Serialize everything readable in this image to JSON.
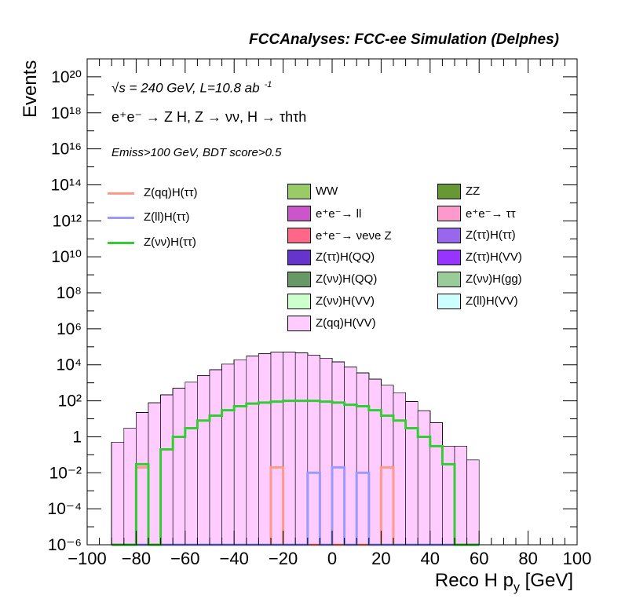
{
  "header": "FCCAnalyses: FCC-ee Simulation (Delphes)",
  "notes": {
    "line1": "√s = 240 GeV, L=10.8 ab",
    "line1_sup": "-1",
    "line2": "e⁺e⁻ → Z H, Z → νν, H → τhτh",
    "line3": "Emiss>100 GeV, BDT score>0.5"
  },
  "chart_data": {
    "type": "histogram",
    "xlabel": "Reco H p",
    "xlabel_sub": "y",
    "xlabel_unit": "[GeV]",
    "ylabel": "Events",
    "xlim": [
      -100,
      100
    ],
    "ylim": [
      1e-06,
      1e+21
    ],
    "log_y": true,
    "x_ticks": [
      "−100",
      "−80",
      "−60",
      "−40",
      "−20",
      "0",
      "20",
      "40",
      "60",
      "80",
      "100"
    ],
    "y_ticks": [
      "10⁻⁶",
      "10⁻⁴",
      "10⁻²",
      "1",
      "10²",
      "10⁴",
      "10⁶",
      "10⁸",
      "10¹⁰",
      "10¹²",
      "10¹⁴",
      "10¹⁶",
      "10¹⁸",
      "10²⁰"
    ],
    "bin_edges_start": -90,
    "bin_width": 5,
    "stack_layers": [
      {
        "name": "WW",
        "color": "#99cc66",
        "values": [
          0.5,
          3,
          20,
          60,
          150,
          300,
          500,
          800,
          1500,
          2500,
          3500,
          4500,
          5000,
          5200,
          5100,
          4500,
          3800,
          2800,
          2000,
          1300,
          800,
          450,
          250,
          120,
          50,
          20,
          5,
          0.3,
          0.3,
          0.05
        ]
      },
      {
        "name": "ZZ",
        "color": "#669933",
        "values": [
          0.001,
          0.05,
          1,
          6,
          20,
          40,
          80,
          150,
          250,
          350,
          500,
          700,
          800,
          850,
          800,
          700,
          550,
          400,
          300,
          250,
          200,
          120,
          80,
          40,
          10,
          3,
          0.5,
          0.001,
          0.001,
          0.001
        ]
      },
      {
        "name": "e⁺e⁻→ττ",
        "color": "#ff99cc",
        "values": [
          0.001,
          0.001,
          0.5,
          10,
          40,
          150,
          500,
          1500,
          3500,
          8000,
          15000,
          25000,
          35000,
          45000,
          45000,
          40000,
          30000,
          20000,
          12000,
          6000,
          2500,
          1000,
          400,
          120,
          30,
          5,
          0.5,
          0.001,
          0.001,
          0.001
        ]
      },
      {
        "name": "e⁺e⁻→νeνeZ",
        "color": "#ff6688",
        "values": [
          1e-06,
          1e-06,
          0.5,
          0.8,
          1.5,
          2.0,
          2.5,
          3.0,
          3.5,
          4.0,
          4.5,
          4.5,
          4.0,
          4.0,
          3.5,
          3.5,
          3.0,
          3.0,
          2.5,
          2.0,
          1.5,
          1.2,
          1.0,
          0.8,
          0.3,
          1e-06,
          1e-06,
          1e-06,
          1e-06,
          1e-06
        ]
      },
      {
        "name": "Z(νν)H(QQ)",
        "color": "#669966",
        "values": [
          1e-06,
          1e-06,
          1e-06,
          1e-06,
          1e-06,
          1e-06,
          0.0003,
          5e-05,
          0.002,
          0.004,
          0.004,
          0.006,
          0.005,
          0.005,
          0.006,
          0.004,
          0.005,
          0.006,
          0.005,
          0.005,
          0.004,
          0.003,
          0.0003,
          1e-06,
          1e-06,
          1e-06,
          1e-06,
          1e-06,
          1e-06,
          1e-06
        ]
      },
      {
        "name": "Z(ττ)H(ττ)",
        "color": "#9966ee",
        "values": [
          1e-06,
          1e-06,
          1e-06,
          0.01,
          1e-06,
          1e-06,
          0.005,
          0.02,
          0.01,
          0.05,
          0.03,
          0.05,
          0.1,
          0.15,
          0.1,
          0.05,
          0.05,
          0.08,
          0.05,
          0.04,
          0.02,
          0.03,
          0.02,
          1e-06,
          1e-06,
          1e-06,
          0.01,
          1e-06,
          1e-06,
          1e-06
        ]
      },
      {
        "name": "Z(ττ)H(VV)",
        "color": "#9933ff",
        "values": [
          1e-06,
          1e-06,
          1e-06,
          1e-06,
          1e-06,
          1e-06,
          0.003,
          0.01,
          0.02,
          0.04,
          0.03,
          0.04,
          0.03,
          0.05,
          0.04,
          0.03,
          0.03,
          0.04,
          0.03,
          0.03,
          0.02,
          0.02,
          0.01,
          1e-06,
          1e-06,
          1e-06,
          1e-06,
          1e-06,
          1e-06,
          1e-06
        ]
      },
      {
        "name": "e⁺e⁻→ll",
        "color": "#cc55cc",
        "values": [
          1e-06,
          1e-06,
          1e-06,
          1e-06,
          1e-06,
          1e-06,
          1e-06,
          1e-06,
          1e-06,
          1e-06,
          1e-06,
          1e-06,
          0.3,
          1.5,
          0.2,
          1e-06,
          1e-06,
          1e-06,
          1e-06,
          1e-06,
          1e-06,
          1e-06,
          1e-06,
          1e-06,
          1e-06,
          1e-06,
          1e-06,
          1e-06,
          1e-06,
          1e-06
        ]
      },
      {
        "name": "Z(νν)H(VV)",
        "color": "#ccffcc",
        "values": [
          1e-06,
          1e-06,
          1e-06,
          1e-06,
          1e-06,
          1e-06,
          1e-06,
          1e-06,
          0.01,
          0.02,
          0.02,
          0.03,
          0.02,
          0.03,
          0.03,
          0.02,
          0.02,
          0.03,
          0.02,
          0.02,
          0.02,
          0.01,
          0.03,
          1e-06,
          1e-06,
          1e-06,
          1e-06,
          1e-06,
          1e-06,
          1e-06
        ]
      },
      {
        "name": "Z(ll)H(VV)",
        "color": "#ccffff",
        "values": [
          1e-06,
          1e-06,
          1e-06,
          1e-06,
          1e-06,
          1e-06,
          1e-06,
          1e-06,
          1e-06,
          1e-06,
          1e-06,
          1e-06,
          1e-06,
          1e-06,
          1e-06,
          1e-06,
          1e-06,
          1e-06,
          1e-06,
          1e-06,
          1e-06,
          1e-06,
          1e-06,
          1e-06,
          1e-06,
          1e-06,
          1e-06,
          1e-06,
          1e-06,
          1e-06
        ]
      },
      {
        "name": "Z(qq)H(VV)",
        "color": "#ffccff",
        "values": [
          1e-06,
          1e-06,
          1e-06,
          1e-06,
          1e-06,
          1e-06,
          1e-06,
          1e-06,
          1e-06,
          1e-06,
          1e-06,
          1e-06,
          1e-06,
          1e-06,
          1e-06,
          1e-06,
          1e-06,
          1e-06,
          1e-06,
          1e-06,
          1e-06,
          1e-06,
          1e-06,
          1e-06,
          1e-06,
          1e-06,
          1e-06,
          1e-06,
          1e-06,
          1e-06
        ]
      }
    ],
    "signal_lines": [
      {
        "name": "Z(qq)H(ττ)",
        "color": "#ff9988",
        "values": [
          1e-06,
          1e-06,
          0.02,
          1e-06,
          1e-06,
          1e-06,
          1e-06,
          1e-06,
          1e-06,
          1e-06,
          1e-06,
          1e-06,
          1e-06,
          0.02,
          1e-06,
          1e-06,
          1e-06,
          1e-06,
          1e-06,
          1e-06,
          1e-06,
          1e-06,
          0.02,
          1e-06,
          1e-06,
          1e-06,
          1e-06,
          1e-06,
          1e-06,
          1e-06
        ]
      },
      {
        "name": "Z(ll)H(ττ)",
        "color": "#9999ff",
        "values": [
          1e-06,
          1e-06,
          1e-06,
          1e-06,
          1e-06,
          1e-06,
          1e-06,
          1e-06,
          1e-06,
          1e-06,
          1e-06,
          1e-06,
          1e-06,
          1e-06,
          1e-06,
          1e-06,
          0.01,
          1e-06,
          0.02,
          1e-06,
          0.01,
          1e-06,
          1e-06,
          1e-06,
          1e-06,
          1e-06,
          1e-06,
          1e-06,
          1e-06,
          1e-06
        ]
      },
      {
        "name": "Z(νν)H(ττ)",
        "color": "#33cc33",
        "values": [
          1e-06,
          1e-06,
          0.03,
          1e-06,
          0.2,
          1,
          3,
          8,
          15,
          30,
          50,
          70,
          80,
          90,
          100,
          100,
          100,
          90,
          80,
          60,
          50,
          30,
          15,
          8,
          3,
          1,
          0.3,
          0.03,
          1e-06,
          1e-06
        ]
      }
    ],
    "legend_left": [
      "Z(qq)H(ττ)",
      "Z(ll)H(ττ)",
      "Z(νν)H(ττ)"
    ],
    "legend_col1": [
      "WW",
      "e⁺e⁻→ ll",
      "e⁺e⁻→ νeνe Z",
      "Z(ττ)H(QQ)",
      "Z(νν)H(QQ)",
      "Z(νν)H(VV)",
      "Z(qq)H(VV)"
    ],
    "legend_col2": [
      "ZZ",
      "e⁺e⁻→ ττ",
      "Z(ττ)H(ττ)",
      "Z(ττ)H(VV)",
      "Z(νν)H(gg)",
      "Z(ll)H(VV)"
    ],
    "legend_colors": {
      "WW": "#99cc66",
      "ZZ": "#669933",
      "ee_ll": "#cc55cc",
      "ee_tautau": "#ff99cc",
      "ee_nunuZ": "#ff6688",
      "Ztautau_Htautau": "#9966ee",
      "Ztautau_HQQ": "#6633cc",
      "Ztautau_HVV": "#9933ff",
      "Znunu_HQQ": "#669966",
      "Znunu_Hgg": "#99cc99",
      "Znunu_HVV": "#ccffcc",
      "Zll_HVV": "#ccffff",
      "Zqq_HVV": "#ffccff",
      "Zqq_Htautau": "#ff9988",
      "Zll_Htautau": "#9999ff",
      "Znunu_Htautau": "#33cc33"
    }
  }
}
